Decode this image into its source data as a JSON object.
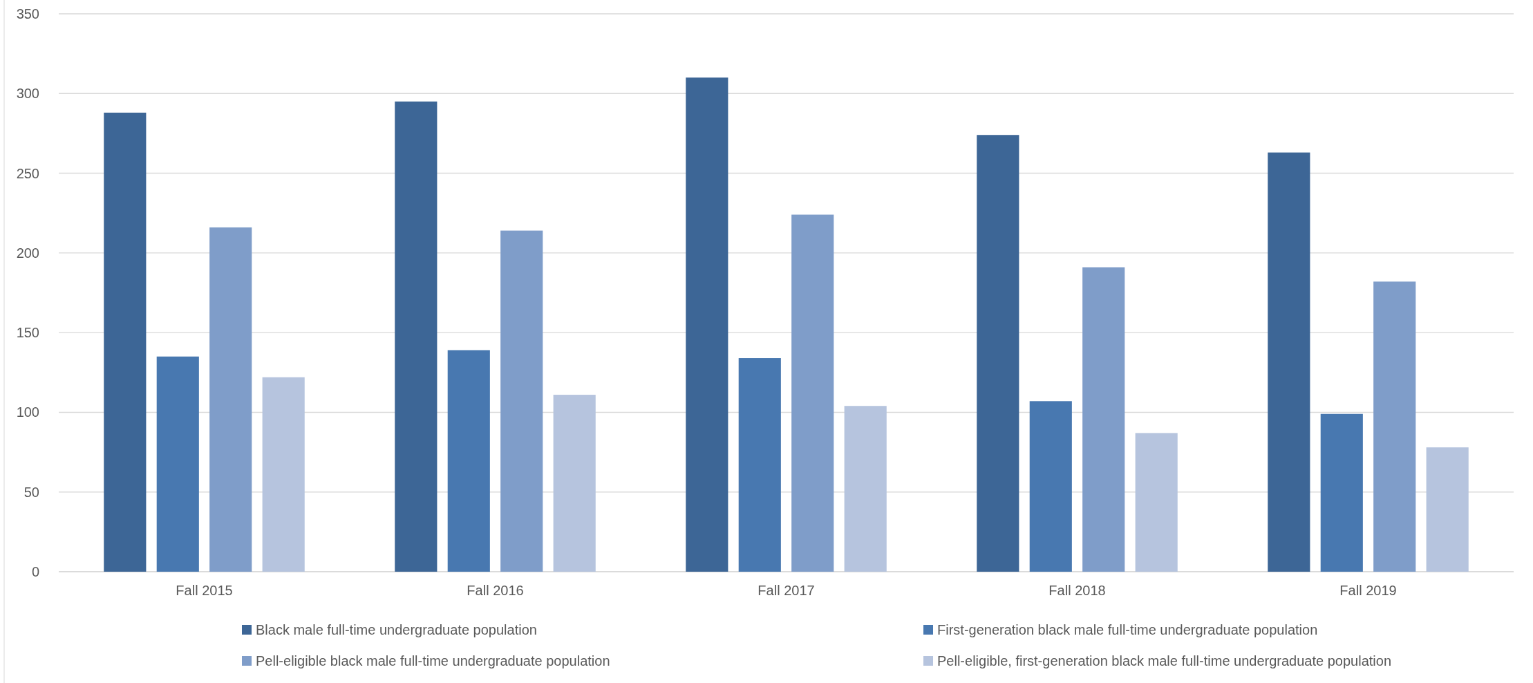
{
  "chart_data": {
    "type": "bar",
    "categories": [
      "Fall 2015",
      "Fall 2016",
      "Fall 2017",
      "Fall 2018",
      "Fall 2019"
    ],
    "series": [
      {
        "name": "Black male full-time undergraduate population",
        "color": "#3d6696",
        "values": [
          288,
          295,
          310,
          274,
          263
        ]
      },
      {
        "name": "First-generation black male full-time undergraduate population",
        "color": "#4878b0",
        "values": [
          135,
          139,
          134,
          107,
          99
        ]
      },
      {
        "name": "Pell-eligible black male full-time undergraduate population",
        "color": "#7f9dc9",
        "values": [
          216,
          214,
          224,
          191,
          182
        ]
      },
      {
        "name": "Pell-eligible, first-generation black male full-time undergraduate population",
        "color": "#b6c4de",
        "values": [
          122,
          111,
          104,
          87,
          78
        ]
      }
    ],
    "ylim": [
      0,
      350
    ],
    "yticks": [
      0,
      50,
      100,
      150,
      200,
      250,
      300,
      350
    ],
    "grid": "y",
    "legend": "bottom"
  }
}
